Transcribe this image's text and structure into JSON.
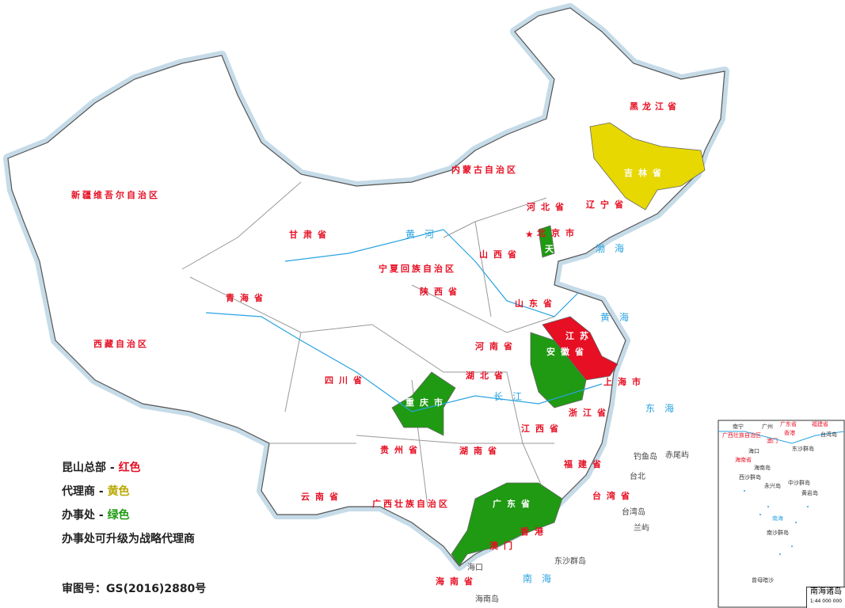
{
  "map": {
    "colors": {
      "headquarters": "#e60f23",
      "agent": "#e6d800",
      "office": "#1f9a12",
      "label": "#e60f23",
      "water": "#2aa3e0",
      "border": "#999999",
      "fill": "#ffffff"
    },
    "provinces_highlighted": [
      {
        "name": "吉林省",
        "category": "agent"
      },
      {
        "name": "江苏省",
        "category": "headquarters"
      },
      {
        "name": "安徽省",
        "category": "office"
      },
      {
        "name": "重庆市",
        "category": "office"
      },
      {
        "name": "广东省",
        "category": "office"
      },
      {
        "name": "天津市",
        "category": "office"
      }
    ],
    "province_labels": [
      "黑龙江省",
      "吉林省",
      "辽宁省",
      "内蒙古自治区",
      "新疆维吾尔自治区",
      "甘肃省",
      "宁夏回族自治区",
      "青海省",
      "西藏自治区",
      "四川省",
      "重庆市",
      "陕西省",
      "山西省",
      "河北省",
      "北京市",
      "天津市",
      "山东省",
      "河南省",
      "江苏省",
      "安徽省",
      "上海市",
      "湖北省",
      "浙江省",
      "湖南省",
      "江西省",
      "福建省",
      "贵州省",
      "云南省",
      "广西壮族自治区",
      "广东省",
      "香港",
      "澳门",
      "海南省",
      "台湾省"
    ],
    "water_labels": [
      "黄海",
      "东海",
      "南海",
      "渤海",
      "黄河",
      "长江"
    ],
    "place_labels": [
      "台北",
      "钓鱼岛",
      "赤尾屿",
      "兰屿",
      "海口",
      "海南岛",
      "东沙群岛",
      "台湾岛"
    ],
    "inset": {
      "title": "南海诸岛",
      "scale": "1:44 000 000",
      "labels": [
        "南宁",
        "广州",
        "广东省",
        "福建省",
        "香港",
        "澳门",
        "广西壮族自治区",
        "海口",
        "海南省",
        "海南岛",
        "东沙群岛",
        "台湾岛",
        "西沙群岛",
        "永兴岛",
        "中沙群岛",
        "黄岩岛",
        "南海",
        "南沙群岛",
        "曾母暗沙"
      ]
    }
  },
  "legend": {
    "items": [
      {
        "label": "昆山总部",
        "sep": " - ",
        "value": "红色",
        "color": "#e60f23"
      },
      {
        "label": "代理商",
        "sep": " - ",
        "value": "黄色",
        "color": "#b8a800"
      },
      {
        "label": "办事处",
        "sep": " - ",
        "value": "绿色",
        "color": "#1f9a12"
      }
    ],
    "note": "办事处可升级为战略代理商",
    "approval": "审图号：GS(2016)2880号"
  }
}
